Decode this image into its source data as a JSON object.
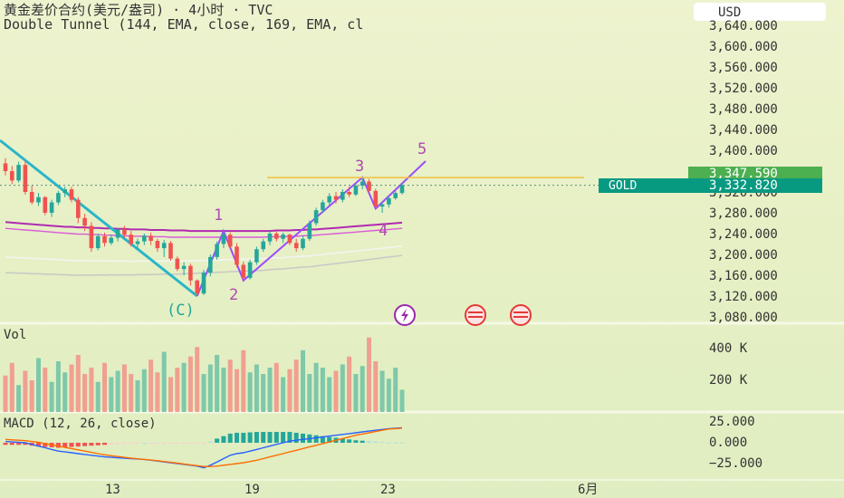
{
  "header": {
    "symbol_line": "黄金差价合约(美元/盎司)  ·  4小时  ·  TVC",
    "indicator_line": "Double Tunnel (144, EMA, close, 169, EMA, cl",
    "currency_button": "USD"
  },
  "price_axis": {
    "ticks": [
      "3,600.000",
      "3,560.000",
      "3,520.000",
      "3,480.000",
      "3,440.000",
      "3,400.000",
      "3,320.000",
      "3,280.000",
      "3,240.000",
      "3,200.000",
      "3,160.000",
      "3,120.000",
      "3,080.000"
    ],
    "tick_values": [
      3600,
      3560,
      3520,
      3480,
      3440,
      3400,
      3320,
      3280,
      3240,
      3200,
      3160,
      3120,
      3080
    ],
    "top_partial_label": "3,640.000",
    "marker_top": "3,347.590",
    "marker_top_value": 3347.59,
    "gold_label": "GOLD",
    "gold_price": "3,332.820",
    "gold_price_value": 3332.82
  },
  "volume_axis": {
    "title": "Vol",
    "ticks": [
      "400 K",
      "200 K"
    ]
  },
  "macd_axis": {
    "title": "MACD (12, 26, close)",
    "ticks": [
      "25.000",
      "0.000",
      "−25.000"
    ]
  },
  "time_axis": {
    "ticks": [
      "13",
      "19",
      "23",
      "6月"
    ]
  },
  "wave_labels": [
    "1",
    "2",
    "3",
    "4",
    "5",
    "(C)"
  ],
  "colors": {
    "bull": "#26a69a",
    "bear": "#ef5350",
    "ema_purple": "#b02bb0",
    "resistance": "#f0c040",
    "gold_bg": "#089981",
    "marker_green": "#4caf50",
    "wave_line": "#9c4dff",
    "macd_line": "#2962ff",
    "signal_line": "#ff6d00"
  },
  "chart_data": {
    "type": "candlestick",
    "timeframe": "4h",
    "ylim": [
      3080,
      3640
    ],
    "resistance_level": 3347.59,
    "last_price": 3332.82,
    "candles": [
      [
        3375,
        3385,
        3352,
        3360
      ],
      [
        3360,
        3370,
        3335,
        3342
      ],
      [
        3342,
        3378,
        3338,
        3372
      ],
      [
        3372,
        3380,
        3315,
        3320
      ],
      [
        3320,
        3332,
        3296,
        3300
      ],
      [
        3300,
        3318,
        3293,
        3310
      ],
      [
        3310,
        3312,
        3275,
        3280
      ],
      [
        3280,
        3305,
        3272,
        3300
      ],
      [
        3300,
        3322,
        3295,
        3318
      ],
      [
        3318,
        3330,
        3310,
        3325
      ],
      [
        3325,
        3330,
        3300,
        3305
      ],
      [
        3305,
        3310,
        3260,
        3270
      ],
      [
        3270,
        3278,
        3245,
        3255
      ],
      [
        3255,
        3262,
        3205,
        3212
      ],
      [
        3212,
        3240,
        3208,
        3235
      ],
      [
        3235,
        3242,
        3215,
        3222
      ],
      [
        3222,
        3238,
        3218,
        3232
      ],
      [
        3232,
        3250,
        3225,
        3248
      ],
      [
        3248,
        3255,
        3232,
        3238
      ],
      [
        3238,
        3245,
        3215,
        3220
      ],
      [
        3220,
        3230,
        3210,
        3225
      ],
      [
        3225,
        3240,
        3218,
        3236
      ],
      [
        3236,
        3242,
        3218,
        3226
      ],
      [
        3226,
        3230,
        3205,
        3212
      ],
      [
        3212,
        3228,
        3195,
        3222
      ],
      [
        3222,
        3226,
        3188,
        3192
      ],
      [
        3192,
        3196,
        3168,
        3172
      ],
      [
        3172,
        3185,
        3160,
        3178
      ],
      [
        3178,
        3182,
        3140,
        3150
      ],
      [
        3150,
        3152,
        3120,
        3125
      ],
      [
        3125,
        3170,
        3122,
        3165
      ],
      [
        3165,
        3200,
        3158,
        3195
      ],
      [
        3195,
        3225,
        3190,
        3220
      ],
      [
        3220,
        3245,
        3212,
        3238
      ],
      [
        3238,
        3242,
        3212,
        3215
      ],
      [
        3215,
        3222,
        3175,
        3180
      ],
      [
        3180,
        3186,
        3150,
        3155
      ],
      [
        3155,
        3190,
        3152,
        3185
      ],
      [
        3185,
        3215,
        3180,
        3210
      ],
      [
        3210,
        3230,
        3205,
        3225
      ],
      [
        3225,
        3245,
        3218,
        3240
      ],
      [
        3240,
        3244,
        3225,
        3230
      ],
      [
        3230,
        3242,
        3222,
        3238
      ],
      [
        3238,
        3240,
        3218,
        3222
      ],
      [
        3222,
        3230,
        3205,
        3212
      ],
      [
        3212,
        3235,
        3208,
        3230
      ],
      [
        3230,
        3265,
        3226,
        3260
      ],
      [
        3260,
        3290,
        3255,
        3285
      ],
      [
        3285,
        3305,
        3280,
        3300
      ],
      [
        3300,
        3318,
        3292,
        3312
      ],
      [
        3312,
        3320,
        3298,
        3305
      ],
      [
        3305,
        3325,
        3300,
        3320
      ],
      [
        3320,
        3330,
        3310,
        3315
      ],
      [
        3315,
        3335,
        3312,
        3332
      ],
      [
        3332,
        3348,
        3325,
        3340
      ],
      [
        3340,
        3345,
        3318,
        3322
      ],
      [
        3322,
        3326,
        3288,
        3292
      ],
      [
        3292,
        3300,
        3280,
        3296
      ],
      [
        3296,
        3312,
        3290,
        3308
      ],
      [
        3308,
        3322,
        3305,
        3318
      ],
      [
        3318,
        3336,
        3315,
        3333
      ]
    ],
    "volume": [
      230,
      310,
      170,
      260,
      200,
      340,
      280,
      190,
      320,
      250,
      300,
      360,
      240,
      280,
      190,
      310,
      220,
      260,
      300,
      240,
      200,
      270,
      330,
      250,
      380,
      220,
      280,
      310,
      350,
      410,
      240,
      300,
      360,
      280,
      330,
      270,
      390,
      250,
      300,
      240,
      280,
      310,
      220,
      270,
      330,
      390,
      240,
      310,
      280,
      220,
      260,
      300,
      350,
      240,
      290,
      470,
      320,
      260,
      210,
      280,
      140
    ],
    "macd": [
      1.5,
      1,
      0.5,
      0,
      -2,
      -4,
      -6,
      -8,
      -10,
      -11,
      -12,
      -13,
      -14,
      -15,
      -16,
      -17,
      -17.5,
      -18,
      -18.5,
      -19,
      -19.5,
      -20,
      -21,
      -22,
      -23,
      -24,
      -25,
      -26,
      -27,
      -28,
      -30,
      -27,
      -23,
      -19,
      -15,
      -13,
      -12,
      -10,
      -8,
      -6,
      -4,
      -2,
      0,
      2,
      3,
      4,
      5,
      6,
      7,
      8,
      9,
      10,
      11,
      12,
      13,
      14,
      15,
      16,
      17,
      17.5,
      18
    ],
    "signal": [
      4,
      3.5,
      3,
      2.5,
      1.5,
      0.5,
      -1,
      -2.5,
      -4,
      -5.5,
      -7,
      -8.5,
      -10,
      -11.5,
      -13,
      -14.5,
      -15.5,
      -16.5,
      -17.5,
      -18.5,
      -19.2,
      -20,
      -20.8,
      -21.5,
      -22.5,
      -23.5,
      -24.5,
      -25.5,
      -26.5,
      -27.5,
      -28.5,
      -28.5,
      -28,
      -27,
      -26,
      -25,
      -24,
      -22.5,
      -21,
      -19,
      -17,
      -15,
      -13,
      -11,
      -9,
      -7,
      -5,
      -3,
      -1,
      1,
      3,
      5,
      7,
      9,
      10.5,
      12,
      13.5,
      15,
      16.5,
      17,
      17.5
    ],
    "macd_histogram_note": "histogram = macd - signal",
    "ema_tunnel": {
      "ema144": [
        3262,
        3261,
        3260,
        3259,
        3258,
        3257,
        3256,
        3255,
        3254,
        3253,
        3253,
        3252,
        3252,
        3251,
        3251,
        3250,
        3250,
        3249,
        3249,
        3248,
        3248,
        3248,
        3247,
        3247,
        3247,
        3246,
        3246,
        3246,
        3245,
        3245,
        3245,
        3245,
        3245,
        3245,
        3245,
        3245,
        3245,
        3245,
        3245,
        3245,
        3245,
        3246,
        3246,
        3246,
        3247,
        3247,
        3248,
        3248,
        3249,
        3250,
        3251,
        3252,
        3253,
        3254,
        3255,
        3256,
        3257,
        3258,
        3259,
        3260,
        3261
      ],
      "ema169": [
        3250,
        3249,
        3248,
        3247,
        3246,
        3245,
        3244,
        3243,
        3242,
        3241,
        3240,
        3239,
        3239,
        3238,
        3238,
        3237,
        3237,
        3236,
        3236,
        3235,
        3235,
        3235,
        3234,
        3234,
        3234,
        3233,
        3233,
        3233,
        3233,
        3233,
        3233,
        3233,
        3233,
        3233,
        3233,
        3233,
        3233,
        3233,
        3233,
        3233,
        3234,
        3234,
        3234,
        3235,
        3235,
        3236,
        3236,
        3237,
        3238,
        3239,
        3240,
        3241,
        3242,
        3243,
        3244,
        3245,
        3246,
        3247,
        3248,
        3249,
        3250
      ]
    }
  }
}
